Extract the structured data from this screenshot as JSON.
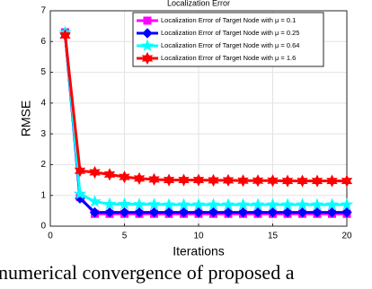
{
  "chart_data": {
    "type": "line",
    "title": "Localization Error",
    "x_label": "Iterations",
    "y_label": "RMSE",
    "x": [
      1,
      2,
      3,
      4,
      5,
      6,
      7,
      8,
      9,
      10,
      11,
      12,
      13,
      14,
      15,
      16,
      17,
      18,
      19,
      20
    ],
    "series": [
      {
        "name": "Localization Error of Target Node with μ = 0.1",
        "color": "#ff00ff",
        "marker": "square",
        "values": [
          6.3,
          0.95,
          0.4,
          0.4,
          0.4,
          0.4,
          0.4,
          0.4,
          0.4,
          0.4,
          0.4,
          0.4,
          0.4,
          0.4,
          0.4,
          0.4,
          0.4,
          0.4,
          0.4,
          0.4
        ]
      },
      {
        "name": "Localization Error of Target Node with μ = 0.25",
        "color": "#0000ff",
        "marker": "diamond",
        "values": [
          6.25,
          0.9,
          0.45,
          0.45,
          0.45,
          0.45,
          0.45,
          0.45,
          0.45,
          0.45,
          0.45,
          0.45,
          0.45,
          0.45,
          0.45,
          0.45,
          0.45,
          0.45,
          0.45,
          0.45
        ]
      },
      {
        "name": "Localization Error of Target Node with μ = 0.64",
        "color": "#00ffff",
        "marker": "star",
        "values": [
          6.3,
          1.05,
          0.8,
          0.72,
          0.72,
          0.71,
          0.71,
          0.7,
          0.7,
          0.7,
          0.7,
          0.7,
          0.7,
          0.7,
          0.7,
          0.7,
          0.7,
          0.7,
          0.7,
          0.7
        ]
      },
      {
        "name": "Localization Error of Target Node with μ = 1.6",
        "color": "#ff0000",
        "marker": "hexagram",
        "values": [
          6.2,
          1.8,
          1.75,
          1.68,
          1.6,
          1.55,
          1.52,
          1.5,
          1.5,
          1.5,
          1.49,
          1.49,
          1.48,
          1.48,
          1.48,
          1.47,
          1.47,
          1.47,
          1.47,
          1.47
        ]
      }
    ],
    "xlim": [
      0,
      20
    ],
    "xticks": [
      0,
      5,
      10,
      15,
      20
    ],
    "ylim": [
      0,
      7
    ],
    "yticks": [
      0,
      1,
      2,
      3,
      4,
      5,
      6,
      7
    ],
    "grid": true,
    "legend": "top-right"
  },
  "caption_fragment": "numerical convergence of proposed a"
}
